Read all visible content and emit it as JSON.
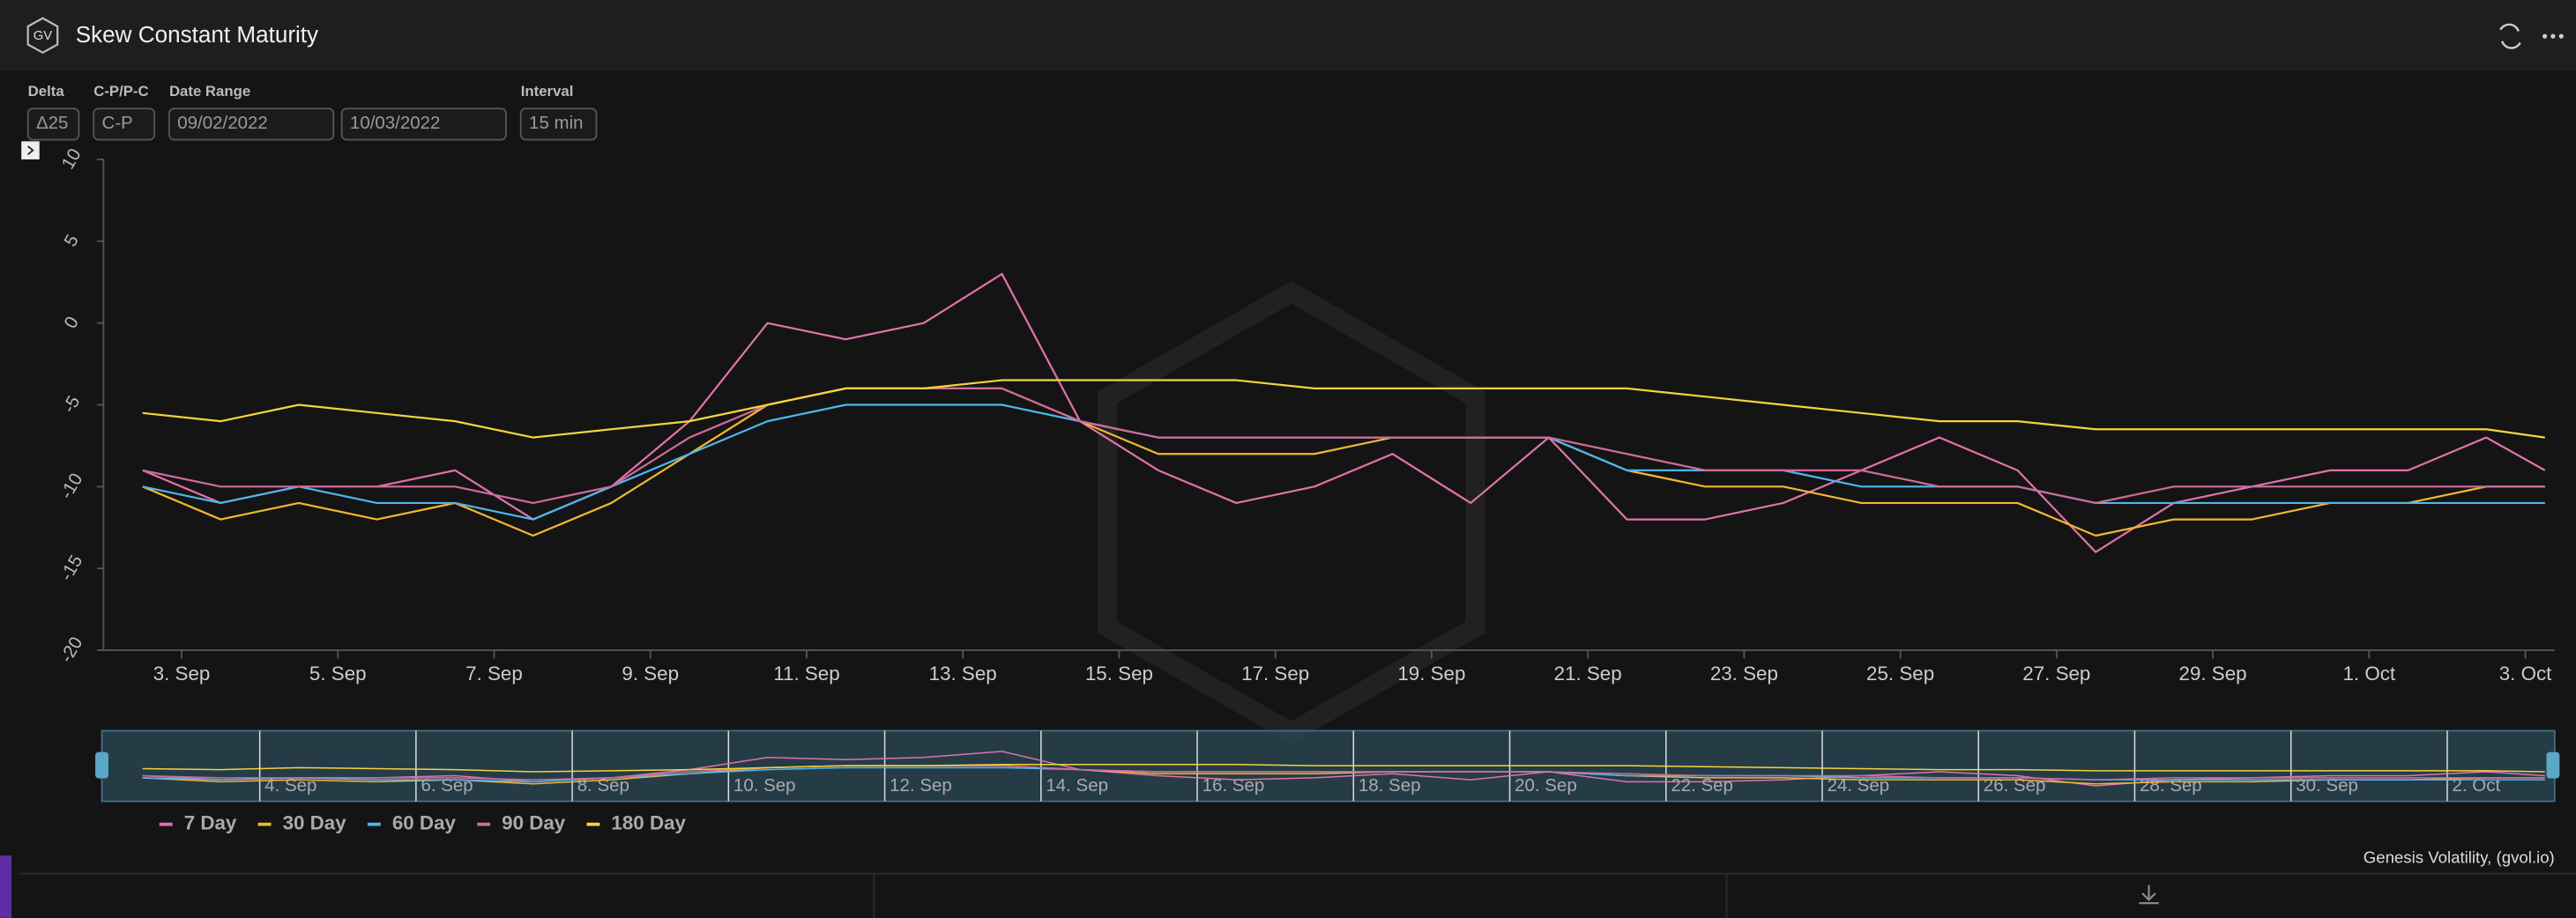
{
  "header": {
    "logo": "GV",
    "title": "Skew Constant Maturity"
  },
  "controls": [
    {
      "label": "Delta",
      "values": [
        "Δ25"
      ]
    },
    {
      "label": "C-P/P-C",
      "values": [
        "C-P"
      ]
    },
    {
      "label": "Date Range",
      "values": [
        "09/02/2022",
        "10/03/2022"
      ]
    },
    {
      "label": "Interval",
      "values": [
        "15 min"
      ]
    }
  ],
  "chart_data": {
    "type": "line",
    "x": [
      "2022-09-02T12:00",
      "2022-09-03T12:00",
      "2022-09-04T12:00",
      "2022-09-05T12:00",
      "2022-09-06T12:00",
      "2022-09-07T12:00",
      "2022-09-08T12:00",
      "2022-09-09T12:00",
      "2022-09-10T12:00",
      "2022-09-11T12:00",
      "2022-09-12T12:00",
      "2022-09-13T12:00",
      "2022-09-14T12:00",
      "2022-09-15T12:00",
      "2022-09-16T12:00",
      "2022-09-17T12:00",
      "2022-09-18T12:00",
      "2022-09-19T12:00",
      "2022-09-20T12:00",
      "2022-09-21T12:00",
      "2022-09-22T12:00",
      "2022-09-23T12:00",
      "2022-09-24T12:00",
      "2022-09-25T12:00",
      "2022-09-26T12:00",
      "2022-09-27T12:00",
      "2022-09-28T12:00",
      "2022-09-29T12:00",
      "2022-09-30T12:00",
      "2022-10-01T12:00",
      "2022-10-02T12:00",
      "2022-10-03T06:00"
    ],
    "series": [
      {
        "name": "7 Day",
        "color": "#e072ab",
        "values": [
          -9,
          -11,
          -10,
          -10,
          -9,
          -12,
          -10,
          -6,
          0,
          -1,
          0,
          3,
          -6,
          -9,
          -11,
          -10,
          -8,
          -11,
          -7,
          -12,
          -12,
          -11,
          -9,
          -7,
          -9,
          -14,
          -11,
          -10,
          -9,
          -9,
          -7,
          -9
        ]
      },
      {
        "name": "30 Day",
        "color": "#f2b632",
        "values": [
          -10,
          -12,
          -11,
          -12,
          -11,
          -13,
          -11,
          -8,
          -5,
          -4,
          -4,
          -4,
          -6,
          -8,
          -8,
          -8,
          -7,
          -7,
          -7,
          -9,
          -10,
          -10,
          -11,
          -11,
          -11,
          -13,
          -12,
          -12,
          -11,
          -11,
          -10,
          -10
        ]
      },
      {
        "name": "60 Day",
        "color": "#4db6ee",
        "values": [
          -10,
          -11,
          -10,
          -11,
          -11,
          -12,
          -10,
          -8,
          -6,
          -5,
          -5,
          -5,
          -6,
          -7,
          -7,
          -7,
          -7,
          -7,
          -7,
          -9,
          -9,
          -9,
          -10,
          -10,
          -10,
          -11,
          -11,
          -11,
          -11,
          -11,
          -11,
          -11
        ]
      },
      {
        "name": "90 Day",
        "color": "#d06a9c",
        "values": [
          -9,
          -10,
          -10,
          -10,
          -10,
          -11,
          -10,
          -7,
          -5,
          -4,
          -4,
          -4,
          -6,
          -7,
          -7,
          -7,
          -7,
          -7,
          -7,
          -8,
          -9,
          -9,
          -9,
          -10,
          -10,
          -11,
          -10,
          -10,
          -10,
          -10,
          -10,
          -10
        ]
      },
      {
        "name": "180 Day",
        "color": "#f3d43c",
        "values": [
          -5.5,
          -6,
          -5,
          -5.5,
          -6,
          -7,
          -6.5,
          -6,
          -5,
          -4,
          -4,
          -3.5,
          -3.5,
          -3.5,
          -3.5,
          -4,
          -4,
          -4,
          -4,
          -4,
          -4.5,
          -5,
          -5.5,
          -6,
          -6,
          -6.5,
          -6.5,
          -6.5,
          -6.5,
          -6.5,
          -6.5,
          -7
        ]
      }
    ],
    "xlim": [
      "2022-09-02T00:00",
      "2022-10-03T09:00"
    ],
    "xticks": [
      {
        "value": "2022-09-03T00:00",
        "label": "3. Sep"
      },
      {
        "value": "2022-09-05T00:00",
        "label": "5. Sep"
      },
      {
        "value": "2022-09-07T00:00",
        "label": "7. Sep"
      },
      {
        "value": "2022-09-09T00:00",
        "label": "9. Sep"
      },
      {
        "value": "2022-09-11T00:00",
        "label": "11. Sep"
      },
      {
        "value": "2022-09-13T00:00",
        "label": "13. Sep"
      },
      {
        "value": "2022-09-15T00:00",
        "label": "15. Sep"
      },
      {
        "value": "2022-09-17T00:00",
        "label": "17. Sep"
      },
      {
        "value": "2022-09-19T00:00",
        "label": "19. Sep"
      },
      {
        "value": "2022-09-21T00:00",
        "label": "21. Sep"
      },
      {
        "value": "2022-09-23T00:00",
        "label": "23. Sep"
      },
      {
        "value": "2022-09-25T00:00",
        "label": "25. Sep"
      },
      {
        "value": "2022-09-27T00:00",
        "label": "27. Sep"
      },
      {
        "value": "2022-09-29T00:00",
        "label": "29. Sep"
      },
      {
        "value": "2022-10-01T00:00",
        "label": "1. Oct"
      },
      {
        "value": "2022-10-03T00:00",
        "label": "3. Oct"
      }
    ],
    "ylim": [
      -20,
      10
    ],
    "yticks": [
      10,
      5,
      0,
      -5,
      -10,
      -15,
      -20
    ],
    "grid": false,
    "legend": "bottom-left"
  },
  "navigator": {
    "xticks": [
      {
        "value": "2022-09-04T00:00",
        "label": "4. Sep"
      },
      {
        "value": "2022-09-06T00:00",
        "label": "6. Sep"
      },
      {
        "value": "2022-09-08T00:00",
        "label": "8. Sep"
      },
      {
        "value": "2022-09-10T00:00",
        "label": "10. Sep"
      },
      {
        "value": "2022-09-12T00:00",
        "label": "12. Sep"
      },
      {
        "value": "2022-09-14T00:00",
        "label": "14. Sep"
      },
      {
        "value": "2022-09-16T00:00",
        "label": "16. Sep"
      },
      {
        "value": "2022-09-18T00:00",
        "label": "18. Sep"
      },
      {
        "value": "2022-09-20T00:00",
        "label": "20. Sep"
      },
      {
        "value": "2022-09-22T00:00",
        "label": "22. Sep"
      },
      {
        "value": "2022-09-24T00:00",
        "label": "24. Sep"
      },
      {
        "value": "2022-09-26T00:00",
        "label": "26. Sep"
      },
      {
        "value": "2022-09-28T00:00",
        "label": "28. Sep"
      },
      {
        "value": "2022-09-30T00:00",
        "label": "30. Sep"
      },
      {
        "value": "2022-10-02T00:00",
        "label": "2. Oct"
      }
    ]
  },
  "footer": {
    "credit": "Genesis Volatility, (gvol.io)"
  }
}
